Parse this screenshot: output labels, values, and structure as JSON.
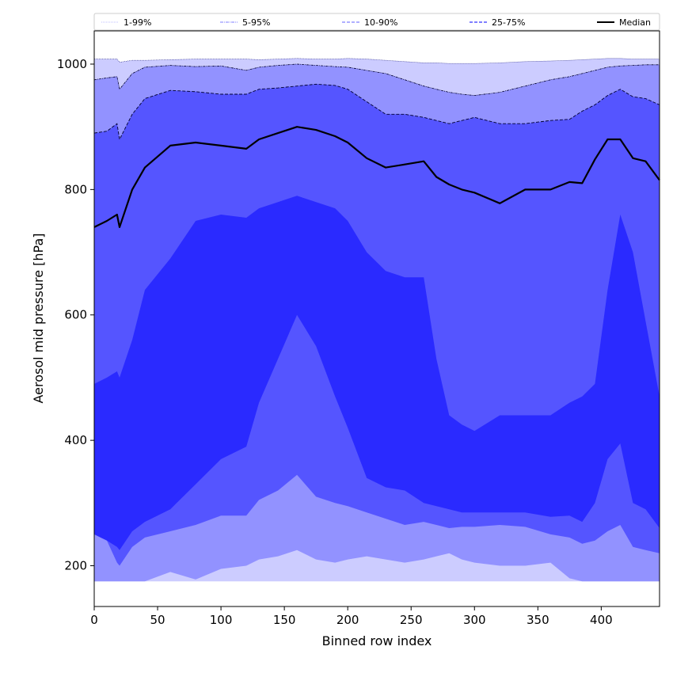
{
  "chart_data": {
    "type": "area",
    "title": "",
    "xlabel": "Binned row index",
    "ylabel": "Aerosol mid pressure [hPa]",
    "xlim": [
      0,
      446
    ],
    "ylim": [
      135,
      1053
    ],
    "xticks": [
      0,
      50,
      100,
      150,
      200,
      250,
      300,
      350,
      400
    ],
    "yticks": [
      200,
      400,
      600,
      800,
      1000
    ],
    "legend": {
      "placement": "top",
      "entries": [
        {
          "label": "1-99%",
          "color": "#ccccff",
          "style": "dotted"
        },
        {
          "label": "5-95%",
          "color": "#9999ff",
          "style": "dashdot"
        },
        {
          "label": "10-90%",
          "color": "#8080ff",
          "style": "dashed"
        },
        {
          "label": "25-75%",
          "color": "#3333ff",
          "style": "dashed"
        },
        {
          "label": "Median",
          "color": "#000000",
          "style": "solid"
        }
      ]
    },
    "band_colors": {
      "p1_99": "#ccccff",
      "p5_95": "#9292ff",
      "p10_90": "#5555ff",
      "p25_75": "#2a2aff",
      "median": "#000000"
    },
    "x": [
      0,
      10,
      18,
      20,
      30,
      40,
      60,
      80,
      100,
      120,
      130,
      145,
      160,
      175,
      190,
      200,
      215,
      230,
      245,
      260,
      270,
      280,
      290,
      300,
      320,
      340,
      360,
      375,
      385,
      395,
      405,
      415,
      425,
      435,
      446
    ],
    "series": [
      {
        "name": "p1",
        "values": [
          175,
          175,
          175,
          175,
          175,
          175,
          175,
          175,
          175,
          175,
          175,
          175,
          175,
          175,
          175,
          175,
          175,
          175,
          175,
          175,
          175,
          175,
          175,
          175,
          175,
          175,
          175,
          175,
          175,
          175,
          175,
          175,
          175,
          175,
          175
        ]
      },
      {
        "name": "p5",
        "values": [
          175,
          175,
          175,
          175,
          175,
          175,
          190,
          178,
          195,
          200,
          210,
          215,
          225,
          210,
          205,
          210,
          215,
          210,
          205,
          210,
          215,
          220,
          210,
          205,
          200,
          200,
          205,
          180,
          175,
          175,
          175,
          175,
          175,
          175,
          175
        ]
      },
      {
        "name": "p10",
        "values": [
          255,
          240,
          205,
          200,
          230,
          245,
          255,
          265,
          280,
          280,
          305,
          320,
          345,
          310,
          300,
          295,
          285,
          275,
          265,
          270,
          265,
          260,
          262,
          262,
          265,
          262,
          250,
          245,
          235,
          240,
          255,
          265,
          230,
          225,
          220
        ]
      },
      {
        "name": "p25",
        "values": [
          250,
          240,
          230,
          225,
          255,
          270,
          290,
          330,
          370,
          390,
          460,
          530,
          600,
          550,
          470,
          420,
          340,
          325,
          320,
          300,
          295,
          290,
          285,
          285,
          285,
          285,
          278,
          280,
          270,
          300,
          370,
          395,
          300,
          290,
          260
        ]
      },
      {
        "name": "p75",
        "values": [
          490,
          500,
          510,
          500,
          560,
          640,
          690,
          750,
          760,
          755,
          770,
          780,
          790,
          780,
          770,
          750,
          700,
          670,
          660,
          660,
          530,
          440,
          425,
          415,
          440,
          440,
          440,
          460,
          470,
          490,
          640,
          760,
          700,
          590,
          470
        ]
      },
      {
        "name": "p90",
        "values": [
          890,
          893,
          905,
          880,
          920,
          945,
          958,
          956,
          952,
          952,
          960,
          962,
          965,
          968,
          966,
          960,
          940,
          920,
          920,
          915,
          910,
          905,
          910,
          915,
          905,
          905,
          910,
          912,
          925,
          935,
          950,
          960,
          948,
          945,
          935
        ]
      },
      {
        "name": "p95",
        "values": [
          975,
          978,
          980,
          960,
          985,
          995,
          998,
          996,
          997,
          990,
          995,
          998,
          1000,
          998,
          996,
          995,
          990,
          985,
          975,
          965,
          960,
          955,
          952,
          950,
          955,
          965,
          975,
          980,
          985,
          990,
          995,
          997,
          998,
          999,
          999
        ]
      },
      {
        "name": "p99",
        "values": [
          1008,
          1008,
          1008,
          1003,
          1006,
          1006,
          1007,
          1008,
          1008,
          1008,
          1007,
          1008,
          1009,
          1008,
          1008,
          1009,
          1008,
          1006,
          1004,
          1002,
          1002,
          1001,
          1001,
          1001,
          1002,
          1004,
          1005,
          1006,
          1007,
          1008,
          1009,
          1009,
          1008,
          1008,
          1008
        ]
      },
      {
        "name": "median",
        "values": [
          740,
          750,
          760,
          740,
          800,
          835,
          870,
          875,
          870,
          865,
          880,
          890,
          900,
          895,
          885,
          875,
          850,
          835,
          840,
          845,
          820,
          808,
          800,
          795,
          778,
          800,
          800,
          812,
          810,
          848,
          880,
          880,
          850,
          845,
          815
        ]
      }
    ]
  }
}
